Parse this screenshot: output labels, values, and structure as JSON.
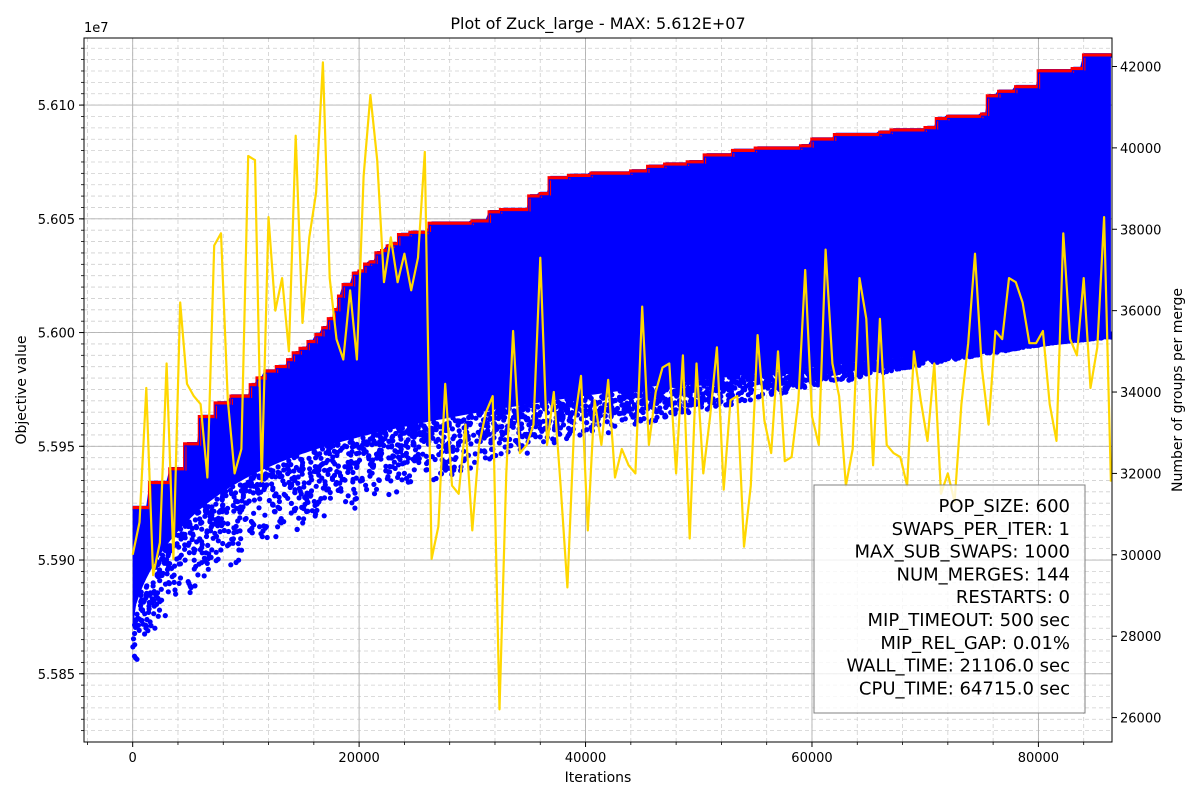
{
  "chart_data": {
    "type": "scatter",
    "title": "Plot of Zuck_large - MAX: 5.612E+07",
    "xlabel": "Iterations",
    "ylabel": "Objective value",
    "y2label": "Number of groups per merge",
    "y_offset_label": "1e7",
    "xlim": [
      -4300,
      86500
    ],
    "ylim": [
      55.82,
      56.1295
    ],
    "y2lim": [
      25400,
      42700
    ],
    "x_ticks": [
      0,
      20000,
      40000,
      60000,
      80000
    ],
    "y_ticks": [
      55.85,
      55.9,
      55.95,
      56.0,
      56.05,
      56.1
    ],
    "y_tick_labels": [
      "5.585",
      "5.590",
      "5.595",
      "5.600",
      "5.605",
      "5.610"
    ],
    "y2_ticks": [
      26000,
      28000,
      30000,
      32000,
      34000,
      36000,
      38000,
      40000,
      42000
    ],
    "grid": true,
    "series": [
      {
        "kind": "population-scatter",
        "color": "#0000ff",
        "note_values_in_1e6": true
      },
      {
        "kind": "best-line",
        "color": "#ff0000",
        "steps": [
          [
            0,
            55.923
          ],
          [
            1200,
            55.923
          ],
          [
            1500,
            55.934
          ],
          [
            3000,
            55.934
          ],
          [
            3300,
            55.94
          ],
          [
            4300,
            55.94
          ],
          [
            4600,
            55.951
          ],
          [
            5600,
            55.951
          ],
          [
            5900,
            55.963
          ],
          [
            6900,
            55.963
          ],
          [
            7300,
            55.969
          ],
          [
            8300,
            55.969
          ],
          [
            8700,
            55.972
          ],
          [
            10100,
            55.972
          ],
          [
            10400,
            55.977
          ],
          [
            11000,
            55.98
          ],
          [
            11700,
            55.983
          ],
          [
            12700,
            55.985
          ],
          [
            13700,
            55.988
          ],
          [
            14200,
            55.991
          ],
          [
            14800,
            55.993
          ],
          [
            15500,
            55.996
          ],
          [
            16200,
            55.999
          ],
          [
            16800,
            56.002
          ],
          [
            17300,
            56.006
          ],
          [
            17800,
            56.01
          ],
          [
            18200,
            56.016
          ],
          [
            18600,
            56.021
          ],
          [
            19100,
            56.021
          ],
          [
            19500,
            56.026
          ],
          [
            20000,
            56.027
          ],
          [
            20500,
            56.03
          ],
          [
            21000,
            56.031
          ],
          [
            21500,
            56.035
          ],
          [
            22000,
            56.036
          ],
          [
            22500,
            56.038
          ],
          [
            23000,
            56.039
          ],
          [
            23500,
            56.043
          ],
          [
            24500,
            56.044
          ],
          [
            26000,
            56.045
          ],
          [
            26200,
            56.048
          ],
          [
            29500,
            56.048
          ],
          [
            30000,
            56.049
          ],
          [
            31500,
            56.053
          ],
          [
            32500,
            56.054
          ],
          [
            34500,
            56.054
          ],
          [
            35000,
            56.06
          ],
          [
            36000,
            56.061
          ],
          [
            36800,
            56.068
          ],
          [
            38500,
            56.069
          ],
          [
            40500,
            56.07
          ],
          [
            44000,
            56.071
          ],
          [
            45500,
            56.073
          ],
          [
            47000,
            56.074
          ],
          [
            49000,
            56.075
          ],
          [
            50500,
            56.078
          ],
          [
            53000,
            56.08
          ],
          [
            55000,
            56.081
          ],
          [
            59000,
            56.082
          ],
          [
            60000,
            56.085
          ],
          [
            62000,
            56.087
          ],
          [
            66000,
            56.088
          ],
          [
            67000,
            56.089
          ],
          [
            70000,
            56.09
          ],
          [
            71000,
            56.094
          ],
          [
            72000,
            56.095
          ],
          [
            75000,
            56.096
          ],
          [
            75500,
            56.104
          ],
          [
            76500,
            56.106
          ],
          [
            78000,
            56.108
          ],
          [
            80000,
            56.115
          ],
          [
            83000,
            56.116
          ],
          [
            84000,
            56.122
          ],
          [
            86500,
            56.122
          ]
        ]
      },
      {
        "kind": "groups-per-merge",
        "axis": "right",
        "color": "#ffd700",
        "x": [
          0,
          600,
          1200,
          1800,
          2400,
          3000,
          3600,
          4200,
          4800,
          5400,
          6000,
          6600,
          7200,
          7800,
          8400,
          9000,
          9600,
          10200,
          10800,
          11400,
          12000,
          12600,
          13200,
          13800,
          14400,
          15000,
          15600,
          16200,
          16800,
          17400,
          18000,
          18600,
          19200,
          19800,
          20400,
          21000,
          21600,
          22200,
          22800,
          23400,
          24000,
          24600,
          25200,
          25800,
          26400,
          27000,
          27600,
          28200,
          28800,
          29400,
          30000,
          30600,
          31200,
          31800,
          32400,
          33000,
          33600,
          34200,
          34800,
          35400,
          36000,
          36600,
          37200,
          37800,
          38400,
          39000,
          39600,
          40200,
          40800,
          41400,
          42000,
          42600,
          43200,
          43800,
          44400,
          45000,
          45600,
          46200,
          46800,
          47400,
          48000,
          48600,
          49200,
          49800,
          50400,
          51000,
          51600,
          52200,
          52800,
          53400,
          54000,
          54600,
          55200,
          55800,
          56400,
          57000,
          57600,
          58200,
          58800,
          59400,
          60000,
          60600,
          61200,
          61800,
          62400,
          63000,
          63600,
          64200,
          64800,
          65400,
          66000,
          66600,
          67200,
          67800,
          68400,
          69000,
          69600,
          70200,
          70800,
          71400,
          72000,
          72600,
          73200,
          73800,
          74400,
          75000,
          75600,
          76200,
          76800,
          77400,
          78000,
          78600,
          79200,
          79800,
          80400,
          81000,
          81600,
          82200,
          82800,
          83400,
          84000,
          84600,
          85200,
          85800,
          86400
        ],
        "values": [
          30000,
          30800,
          34100,
          29500,
          30300,
          34700,
          29900,
          36200,
          34200,
          33900,
          33700,
          31900,
          37600,
          37900,
          33800,
          32000,
          32600,
          39800,
          39700,
          31800,
          38300,
          36000,
          36800,
          35000,
          40300,
          35700,
          37800,
          38900,
          42100,
          36800,
          35300,
          34800,
          36500,
          34800,
          39300,
          41300,
          39700,
          36700,
          37800,
          36700,
          37400,
          36500,
          37300,
          39900,
          29900,
          30700,
          34200,
          31700,
          31500,
          33200,
          30600,
          32700,
          33500,
          33900,
          26200,
          32000,
          35500,
          32500,
          32700,
          33200,
          37300,
          32700,
          34000,
          31700,
          29200,
          33200,
          34400,
          30600,
          33800,
          32700,
          34300,
          31900,
          32600,
          32200,
          32000,
          36100,
          32700,
          34000,
          34600,
          34700,
          32000,
          34900,
          30400,
          34700,
          32000,
          33400,
          35100,
          31600,
          33800,
          33900,
          30200,
          31700,
          35400,
          33300,
          32500,
          35000,
          32300,
          32400,
          33800,
          37000,
          33400,
          32700,
          37500,
          34700,
          33900,
          31700,
          32600,
          36800,
          35800,
          32200,
          35800,
          32700,
          32500,
          32400,
          31700,
          35000,
          33800,
          32800,
          34700,
          31500,
          32000,
          31300,
          33700,
          35200,
          37400,
          34600,
          33200,
          35500,
          35300,
          36800,
          36700,
          36200,
          35200,
          35200,
          35500,
          33700,
          32800,
          37900,
          35300,
          34900,
          36800,
          34100,
          35100,
          38300,
          31800
        ]
      }
    ],
    "parameters_box": [
      "POP_SIZE: 600",
      "SWAPS_PER_ITER: 1",
      "MAX_SUB_SWAPS: 1000",
      "NUM_MERGES: 144",
      "RESTARTS: 0",
      "MIP_TIMEOUT: 500 sec",
      "MIP_REL_GAP: 0.01%",
      "WALL_TIME: 21106.0 sec",
      "CPU_TIME: 64715.0 sec"
    ]
  }
}
